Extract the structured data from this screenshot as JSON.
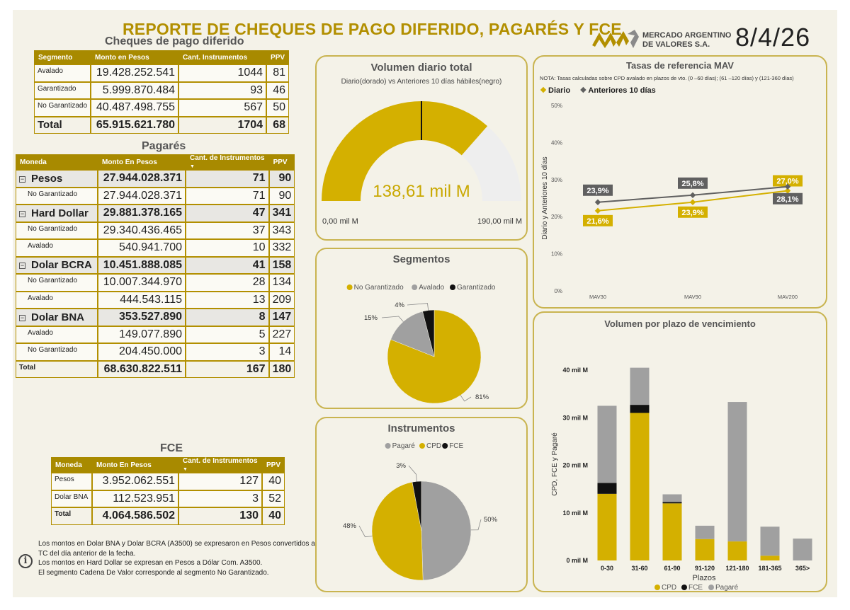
{
  "header": {
    "title": "REPORTE DE CHEQUES DE PAGO DIFERIDO, PAGARÉS Y FCE",
    "logo_line1": "MERCADO ARGENTINO",
    "logo_line2": "DE VALORES S.A.",
    "date": "8/4/26"
  },
  "cpd": {
    "title": "Cheques de pago diferido",
    "headers": [
      "Segmento",
      "Monto en Pesos",
      "Cant. Instrumentos",
      "PPV"
    ],
    "rows": [
      {
        "label": "Avalado",
        "monto": "19.428.252.541",
        "cant": "1044",
        "ppv": "81"
      },
      {
        "label": "Garantizado",
        "monto": "5.999.870.484",
        "cant": "93",
        "ppv": "46"
      },
      {
        "label": "No Garantizado",
        "monto": "40.487.498.755",
        "cant": "567",
        "ppv": "50"
      }
    ],
    "total": {
      "label": "Total",
      "monto": "65.915.621.780",
      "cant": "1704",
      "ppv": "68"
    }
  },
  "pagares": {
    "title": "Pagarés",
    "headers": [
      "Moneda",
      "Monto En Pesos",
      "Cant. de Instrumentos",
      "PPV"
    ],
    "groups": [
      {
        "label": "Pesos",
        "monto": "27.944.028.371",
        "cant": "71",
        "ppv": "90",
        "rows": [
          {
            "label": "No Garantizado",
            "monto": "27.944.028.371",
            "cant": "71",
            "ppv": "90"
          }
        ]
      },
      {
        "label": "Hard Dollar",
        "monto": "29.881.378.165",
        "cant": "47",
        "ppv": "341",
        "rows": [
          {
            "label": "No Garantizado",
            "monto": "29.340.436.465",
            "cant": "37",
            "ppv": "343"
          },
          {
            "label": "Avalado",
            "monto": "540.941.700",
            "cant": "10",
            "ppv": "332"
          }
        ]
      },
      {
        "label": "Dolar BCRA",
        "monto": "10.451.888.085",
        "cant": "41",
        "ppv": "158",
        "rows": [
          {
            "label": "No Garantizado",
            "monto": "10.007.344.970",
            "cant": "28",
            "ppv": "134"
          },
          {
            "label": "Avalado",
            "monto": "444.543.115",
            "cant": "13",
            "ppv": "209"
          }
        ]
      },
      {
        "label": "Dolar BNA",
        "monto": "353.527.890",
        "cant": "8",
        "ppv": "147",
        "rows": [
          {
            "label": "Avalado",
            "monto": "149.077.890",
            "cant": "5",
            "ppv": "227"
          },
          {
            "label": "No Garantizado",
            "monto": "204.450.000",
            "cant": "3",
            "ppv": "14"
          }
        ]
      }
    ],
    "total": {
      "label": "Total",
      "monto": "68.630.822.511",
      "cant": "167",
      "ppv": "180"
    }
  },
  "fce": {
    "title": "FCE",
    "headers": [
      "Moneda",
      "Monto En Pesos",
      "Cant. de Instrumentos",
      "PPV"
    ],
    "rows": [
      {
        "label": "Pesos",
        "monto": "3.952.062.551",
        "cant": "127",
        "ppv": "40"
      },
      {
        "label": "Dolar BNA",
        "monto": "112.523.951",
        "cant": "3",
        "ppv": "52"
      }
    ],
    "total": {
      "label": "Total",
      "monto": "4.064.586.502",
      "cant": "130",
      "ppv": "40"
    }
  },
  "notes": {
    "icon": "info-icon",
    "lines": [
      "Los montos en Dolar BNA y Dolar BCRA (A3500) se expresaron en Pesos convertidos al",
      "TC del día anterior de la fecha.",
      "Los montos en Hard Dollar se expresan en Pesos a Dólar Com. A3500.",
      "El segmento Cadena De Valor corresponde al segmento No Garantizado."
    ]
  },
  "colors": {
    "gold": "#d4b000",
    "gray": "#a0a0a0",
    "black": "#111111",
    "dark_gray": "#606060",
    "light": "#eeeeee",
    "border": "#c9b450"
  },
  "chart_data": [
    {
      "type": "gauge",
      "title": "Volumen diario total",
      "subtitle": "Diario(dorado) vs Anteriores 10 días hábiles(negro)",
      "value": 138.61,
      "value_label": "138,61 mil M",
      "target": 95,
      "min": 0,
      "max": 190,
      "min_label": "0,00 mil M",
      "max_label": "190,00 mil M"
    },
    {
      "type": "pie",
      "title": "Segmentos",
      "labels": [
        "No Garantizado",
        "Avalado",
        "Garantizado"
      ],
      "values": [
        81,
        15,
        4
      ],
      "value_labels": [
        "81%",
        "15%",
        "4%"
      ],
      "colors": [
        "#d4b000",
        "#a0a0a0",
        "#111111"
      ]
    },
    {
      "type": "pie",
      "title": "Instrumentos",
      "labels": [
        "Pagaré",
        "CPD",
        "FCE"
      ],
      "values": [
        50,
        48,
        3
      ],
      "value_labels": [
        "50%",
        "48%",
        "3%"
      ],
      "colors": [
        "#a0a0a0",
        "#d4b000",
        "#111111"
      ]
    },
    {
      "type": "line",
      "title": "Tasas de referencia MAV",
      "note": "NOTA: Tasas calculadas sobre CPD avalado en plazos de vto. (0 –60 días); (61 –120 días) y (121-360 días)",
      "categories": [
        "MAV30",
        "MAV90",
        "MAV200"
      ],
      "series": [
        {
          "name": "Diario",
          "values": [
            21.6,
            23.9,
            27.0
          ],
          "labels": [
            "21,6%",
            "23,9%",
            "27,0%"
          ],
          "color": "#d4b000"
        },
        {
          "name": "Anteriores 10 días",
          "values": [
            23.9,
            25.8,
            28.1
          ],
          "labels": [
            "23,9%",
            "25,8%",
            "28,1%"
          ],
          "color": "#606060"
        }
      ],
      "ylabel": "Diario y Anteriores 10 días",
      "yticks": [
        "0%",
        "10%",
        "20%",
        "30%",
        "40%",
        "50%"
      ],
      "ylim": [
        0,
        50
      ]
    },
    {
      "type": "bar",
      "stacked": true,
      "title": "Volumen por plazo de vencimiento",
      "categories": [
        "0-30",
        "31-60",
        "61-90",
        "91-120",
        "121-180",
        "181-365",
        "365>"
      ],
      "series": [
        {
          "name": "CPD",
          "values": [
            14.0,
            31.0,
            12.0,
            4.5,
            4.0,
            1.0,
            0.0
          ],
          "color": "#d4b000"
        },
        {
          "name": "FCE",
          "values": [
            2.3,
            1.7,
            0.3,
            0.0,
            0.0,
            0.0,
            0.0
          ],
          "color": "#111111"
        },
        {
          "name": "Pagaré",
          "values": [
            16.2,
            7.8,
            1.6,
            2.8,
            29.3,
            6.1,
            4.6
          ],
          "color": "#a0a0a0"
        }
      ],
      "xlabel": "Plazos",
      "ylabel": "CPD, FCE y Pagaré",
      "yticks": [
        "0 mil M",
        "10 mil M",
        "20 mil M",
        "30 mil M",
        "40 mil M"
      ],
      "ylim": [
        0,
        45
      ]
    }
  ]
}
